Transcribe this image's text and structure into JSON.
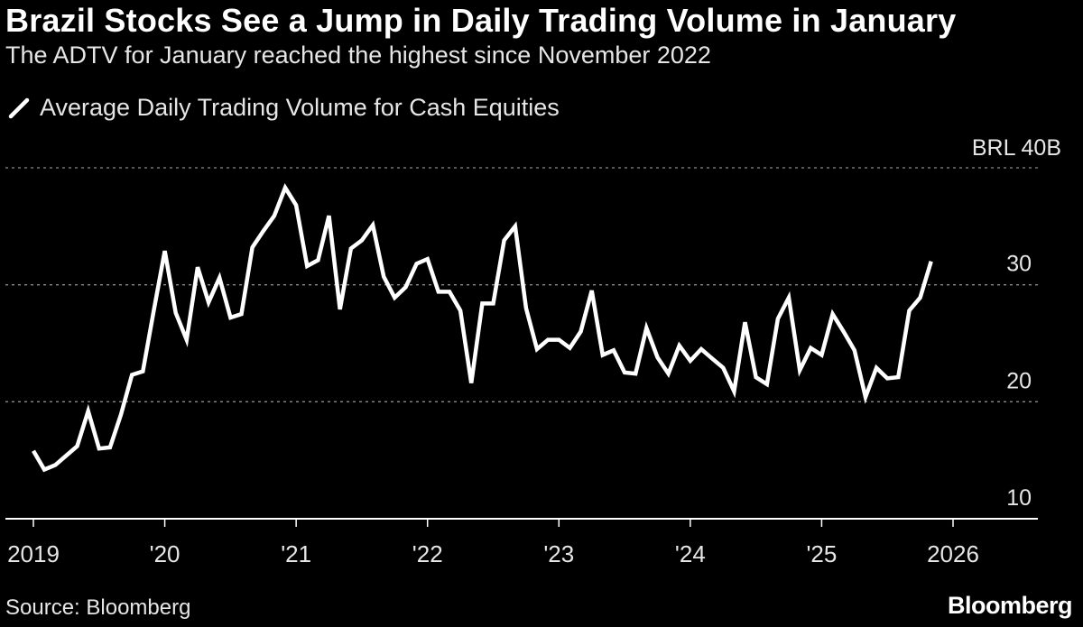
{
  "header": {
    "title": "Brazil Stocks See a Jump in Daily Trading Volume in January",
    "subtitle": "The ADTV for January reached the highest since November 2022"
  },
  "footer": {
    "source": "Source: Bloomberg",
    "brand": "Bloomberg"
  },
  "colors": {
    "background": "#000000",
    "line": "#ffffff",
    "grid": "#8a8a8a",
    "text": "#e6e6e6"
  },
  "chart_data": {
    "type": "line",
    "title": "Brazil Stocks See a Jump in Daily Trading Volume in January",
    "subtitle": "The ADTV for January reached the highest since November 2022",
    "unit_label": "BRL 40B",
    "xlabel": "",
    "ylabel": "",
    "ylim": [
      10,
      40
    ],
    "yticks": [
      10,
      20,
      30
    ],
    "grid": true,
    "legend_position": "top-left",
    "x_tick_labels": [
      {
        "year": 2019,
        "label": "2019"
      },
      {
        "year": 2020,
        "label": "'20"
      },
      {
        "year": 2021,
        "label": "'21"
      },
      {
        "year": 2022,
        "label": "'22"
      },
      {
        "year": 2023,
        "label": "'23"
      },
      {
        "year": 2024,
        "label": "'24"
      },
      {
        "year": 2025,
        "label": "'25"
      },
      {
        "year": 2026,
        "label": "2026"
      }
    ],
    "series": [
      {
        "name": "Average Daily Trading Volume for Cash Equities",
        "start": "2019-01",
        "frequency": "monthly",
        "values": [
          15.8,
          14.2,
          14.6,
          15.4,
          16.2,
          19.2,
          16.0,
          16.1,
          18.9,
          22.3,
          22.6,
          27.8,
          32.9,
          27.6,
          25.3,
          31.5,
          28.5,
          30.6,
          27.2,
          27.5,
          33.2,
          34.6,
          35.9,
          38.3,
          36.8,
          31.6,
          32.1,
          35.9,
          27.9,
          33.1,
          33.8,
          35.1,
          30.7,
          28.9,
          29.8,
          31.8,
          32.2,
          29.4,
          29.4,
          27.8,
          21.6,
          28.4,
          28.4,
          33.8,
          35.0,
          28.0,
          24.5,
          25.3,
          25.3,
          24.6,
          26.0,
          29.5,
          24.0,
          24.4,
          22.5,
          22.4,
          26.3,
          23.8,
          22.4,
          24.8,
          23.5,
          24.5,
          23.7,
          22.9,
          20.9,
          26.8,
          22.1,
          21.5,
          27.1,
          28.9,
          22.7,
          24.6,
          24.0,
          27.5,
          26.0,
          24.4,
          20.4,
          22.9,
          22.0,
          22.1,
          27.8,
          28.9,
          32.0
        ]
      }
    ]
  }
}
